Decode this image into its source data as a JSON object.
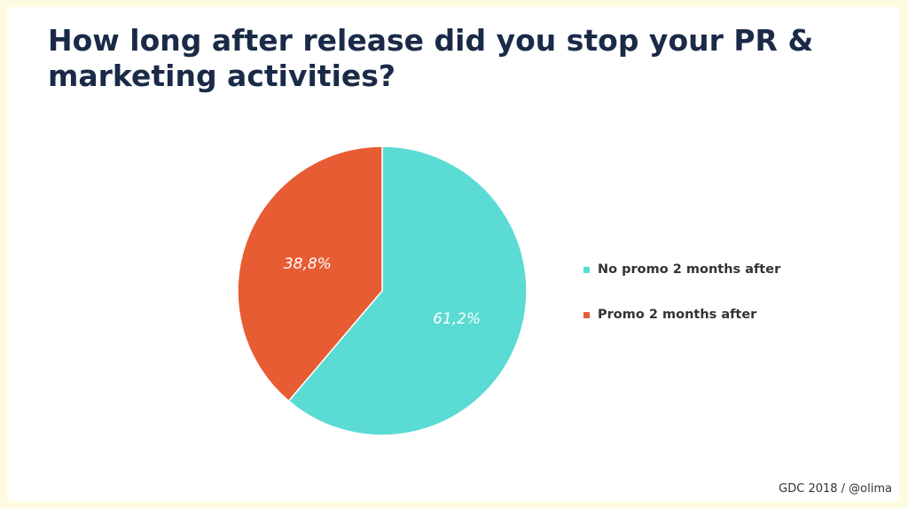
{
  "slide": {
    "title": "How long after release did you stop your PR & marketing activities?",
    "footer": "GDC 2018 / @olima"
  },
  "chart_data": {
    "type": "pie",
    "title": "How long after release did you stop your PR & marketing activities?",
    "categories": [
      "No promo 2 months after",
      "Promo 2 months after"
    ],
    "values": [
      61.2,
      38.8
    ],
    "data_labels": [
      "61,2%",
      "38,8%"
    ],
    "colors": [
      "#5adbd4",
      "#e85c33"
    ],
    "legend_position": "right"
  }
}
